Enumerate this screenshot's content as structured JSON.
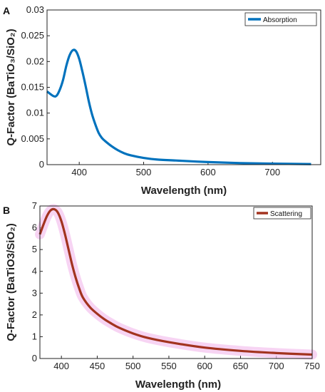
{
  "chart_data": [
    {
      "panel": "A",
      "type": "line",
      "xlabel": "Wavelength (nm)",
      "ylabel": "Q-Factor (BaTiO₃/SiO₂)",
      "xlim": [
        350,
        775
      ],
      "ylim": [
        0,
        0.03
      ],
      "xticks": [
        400,
        500,
        600,
        700
      ],
      "yticks": [
        0,
        0.005,
        0.01,
        0.015,
        0.02,
        0.025,
        0.03
      ],
      "ytick_labels": [
        "0",
        "0.005",
        "0.01",
        "0.015",
        "0.02",
        "0.025",
        "0.03"
      ],
      "grid": false,
      "legend_position": "top-right",
      "series": [
        {
          "name": "Absorption",
          "color": "#0072BD",
          "x": [
            350,
            360,
            365,
            370,
            375,
            380,
            385,
            390,
            395,
            400,
            405,
            410,
            415,
            420,
            425,
            430,
            435,
            440,
            450,
            460,
            470,
            480,
            500,
            520,
            550,
            600,
            650,
            700,
            760
          ],
          "y": [
            0.0142,
            0.0133,
            0.0134,
            0.0146,
            0.0165,
            0.0192,
            0.0212,
            0.0222,
            0.022,
            0.0205,
            0.018,
            0.0152,
            0.0122,
            0.0097,
            0.0078,
            0.0062,
            0.0052,
            0.0046,
            0.0036,
            0.0028,
            0.0022,
            0.0018,
            0.0013,
            0.001,
            0.0008,
            0.0005,
            0.0003,
            0.0002,
            0.0001
          ]
        }
      ]
    },
    {
      "panel": "B",
      "type": "line",
      "xlabel": "Wavelength (nm)",
      "ylabel": "Q-Factor (BaTiO3/SiO₂)",
      "xlim": [
        370,
        750
      ],
      "ylim": [
        0,
        7
      ],
      "xticks": [
        400,
        450,
        500,
        550,
        600,
        650,
        700,
        750
      ],
      "yticks": [
        0,
        1,
        2,
        3,
        4,
        5,
        6,
        7
      ],
      "ytick_labels": [
        "0",
        "1",
        "2",
        "3",
        "4",
        "5",
        "6",
        "7"
      ],
      "grid": false,
      "legend_position": "top-right",
      "series": [
        {
          "name": "Scattering",
          "color": "#A2331F",
          "x": [
            370,
            375,
            380,
            385,
            390,
            395,
            400,
            405,
            410,
            415,
            420,
            425,
            430,
            440,
            450,
            460,
            470,
            480,
            500,
            520,
            550,
            600,
            650,
            700,
            750
          ],
          "y": [
            5.7,
            6.15,
            6.55,
            6.8,
            6.85,
            6.7,
            6.3,
            5.7,
            5.0,
            4.3,
            3.7,
            3.2,
            2.8,
            2.35,
            2.05,
            1.8,
            1.6,
            1.42,
            1.15,
            0.95,
            0.75,
            0.5,
            0.35,
            0.25,
            0.18
          ]
        }
      ]
    }
  ]
}
